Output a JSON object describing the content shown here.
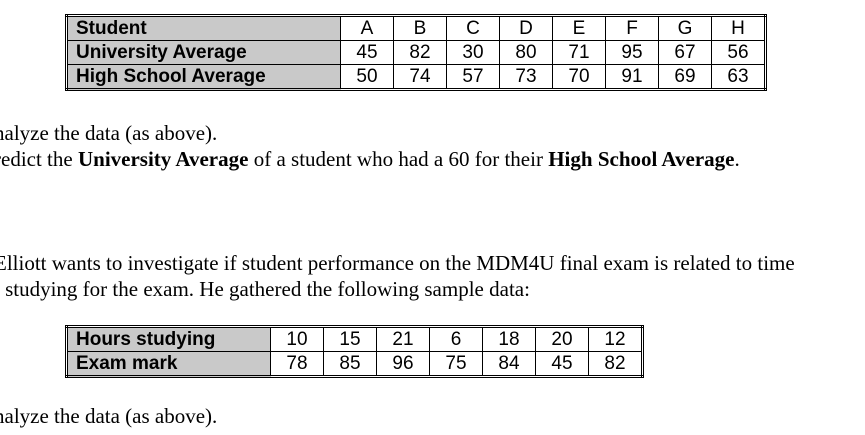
{
  "table1": {
    "rows": [
      {
        "label": "Student",
        "values": [
          "A",
          "B",
          "C",
          "D",
          "E",
          "F",
          "G",
          "H"
        ]
      },
      {
        "label": "University Average",
        "values": [
          "45",
          "82",
          "30",
          "80",
          "71",
          "95",
          "67",
          "56"
        ]
      },
      {
        "label": "High School Average",
        "values": [
          "50",
          "74",
          "57",
          "73",
          "70",
          "91",
          "69",
          "63"
        ]
      }
    ]
  },
  "q1": {
    "line1": "nalyze the data (as above).",
    "line2_pre": "redict the ",
    "line2_bold1": "University Average",
    "line2_mid": " of a student who had a 60 for their ",
    "line2_bold2": "High School Average",
    "line2_post": "."
  },
  "q2": {
    "line1": "Elliott wants to investigate if student performance on the MDM4U final exam is related to time",
    "line2": "t studying for the exam. He gathered the following sample data:"
  },
  "table2": {
    "rows": [
      {
        "label": "Hours studying",
        "values": [
          "10",
          "15",
          "21",
          "6",
          "18",
          "20",
          "12"
        ]
      },
      {
        "label": "Exam mark",
        "values": [
          "78",
          "85",
          "96",
          "75",
          "84",
          "45",
          "82"
        ]
      }
    ]
  },
  "q3": {
    "line1": "nalyze the data (as above)."
  }
}
